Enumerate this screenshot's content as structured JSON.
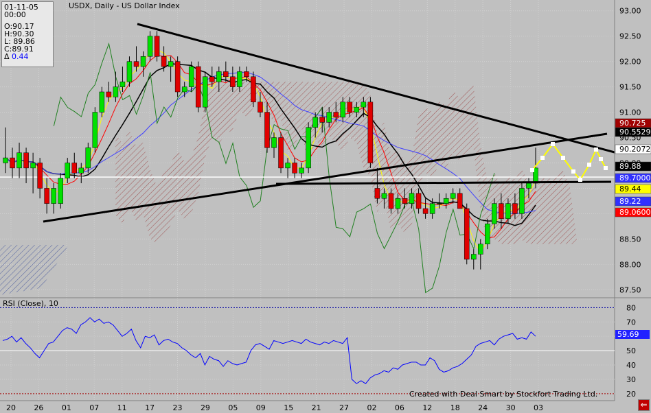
{
  "chart_header": {
    "title": "USDX, Daily - US Dollar Index"
  },
  "info_box": {
    "date": "01-11-05",
    "time": "00:00",
    "open": "O:90.17",
    "high": "H:90.30",
    "low": "L: 89.86",
    "close": "C:89.91",
    "change_symbol": "Δ",
    "change_value": "0.44"
  },
  "rsi_panel": {
    "title": "RSI (Close), 10",
    "current_value": "59.69"
  },
  "credit": "Created with Deal Smart by Stockfort Trading Ltd.",
  "price_labels": [
    {
      "text": "90.725",
      "color": "#a00000",
      "text_color": "#ffffff"
    },
    {
      "text": "90.5529",
      "color": "#000000",
      "text_color": "#ffffff"
    },
    {
      "text": "90.2072",
      "color": "#ffffff",
      "text_color": "#000000"
    },
    {
      "text": "89.88",
      "color": "#000000",
      "text_color": "#ffffff"
    },
    {
      "text": "89.7000",
      "color": "#3030ff",
      "text_color": "#ffffff"
    },
    {
      "text": "89.44",
      "color": "#ffff00",
      "text_color": "#000000"
    },
    {
      "text": "89.22",
      "color": "#3030ff",
      "text_color": "#ffffff"
    },
    {
      "text": "89.0600",
      "color": "#ff0000",
      "text_color": "#ffffff"
    }
  ],
  "colors": {
    "background": "#c0c0c0",
    "grid": "#d8d8d8",
    "up_candle": "#00e000",
    "down_candle": "#e00000",
    "rsi_line": "#0000ff",
    "cloud_hatch": "#a06060",
    "yellow_line": "#ffff00",
    "blue_line": "#4040ff",
    "green_line": "#208020"
  },
  "exit_button": {
    "label": "⇐"
  },
  "chart_data": {
    "type": "candlestick",
    "title": "USDX, Daily - US Dollar Index",
    "y_axis_ticks": [
      "93.00",
      "92.50",
      "92.00",
      "91.50",
      "91.00",
      "90.50",
      "90.00",
      "89.50",
      "89.00",
      "88.50",
      "88.00",
      "87.50"
    ],
    "ylim": [
      87.45,
      93.05
    ],
    "x_axis_ticks": [
      "20",
      "26",
      "01",
      "07",
      "11",
      "17",
      "23",
      "29",
      "05",
      "09",
      "15",
      "21",
      "27",
      "02",
      "06",
      "12",
      "18",
      "24",
      "30",
      "03"
    ],
    "candles": [
      {
        "o": 90.0,
        "h": 90.7,
        "l": 89.8,
        "c": 90.1
      },
      {
        "o": 90.1,
        "h": 90.3,
        "l": 89.7,
        "c": 89.9
      },
      {
        "o": 89.9,
        "h": 90.4,
        "l": 89.7,
        "c": 90.2
      },
      {
        "o": 90.2,
        "h": 90.3,
        "l": 89.6,
        "c": 89.9
      },
      {
        "o": 89.9,
        "h": 90.2,
        "l": 89.4,
        "c": 90.0
      },
      {
        "o": 90.0,
        "h": 90.1,
        "l": 89.3,
        "c": 89.5
      },
      {
        "o": 89.5,
        "h": 89.7,
        "l": 89.0,
        "c": 89.2
      },
      {
        "o": 89.2,
        "h": 89.6,
        "l": 89.0,
        "c": 89.5
      },
      {
        "o": 89.2,
        "h": 89.8,
        "l": 89.1,
        "c": 89.7
      },
      {
        "o": 89.7,
        "h": 90.1,
        "l": 89.6,
        "c": 90.0
      },
      {
        "o": 90.0,
        "h": 90.2,
        "l": 89.7,
        "c": 89.8
      },
      {
        "o": 89.8,
        "h": 90.0,
        "l": 89.6,
        "c": 89.9
      },
      {
        "o": 89.9,
        "h": 90.4,
        "l": 89.8,
        "c": 90.3
      },
      {
        "o": 90.3,
        "h": 91.1,
        "l": 90.2,
        "c": 91.0
      },
      {
        "o": 91.0,
        "h": 91.5,
        "l": 90.9,
        "c": 91.4
      },
      {
        "o": 91.4,
        "h": 91.6,
        "l": 91.2,
        "c": 91.3
      },
      {
        "o": 91.3,
        "h": 91.8,
        "l": 91.2,
        "c": 91.5
      },
      {
        "o": 91.5,
        "h": 91.9,
        "l": 91.4,
        "c": 91.6
      },
      {
        "o": 91.6,
        "h": 92.1,
        "l": 91.5,
        "c": 92.0
      },
      {
        "o": 92.0,
        "h": 92.3,
        "l": 91.8,
        "c": 91.9
      },
      {
        "o": 91.9,
        "h": 92.2,
        "l": 91.7,
        "c": 92.1
      },
      {
        "o": 92.1,
        "h": 92.6,
        "l": 92.0,
        "c": 92.5
      },
      {
        "o": 92.5,
        "h": 92.6,
        "l": 92.0,
        "c": 92.1
      },
      {
        "o": 92.1,
        "h": 92.3,
        "l": 91.8,
        "c": 91.9
      },
      {
        "o": 91.9,
        "h": 92.1,
        "l": 91.6,
        "c": 92.0
      },
      {
        "o": 92.0,
        "h": 92.1,
        "l": 91.3,
        "c": 91.4
      },
      {
        "o": 91.4,
        "h": 91.6,
        "l": 91.3,
        "c": 91.5
      },
      {
        "o": 91.5,
        "h": 92.0,
        "l": 91.4,
        "c": 91.9
      },
      {
        "o": 91.9,
        "h": 92.0,
        "l": 91.0,
        "c": 91.1
      },
      {
        "o": 91.1,
        "h": 91.8,
        "l": 91.0,
        "c": 91.7
      },
      {
        "o": 91.7,
        "h": 91.9,
        "l": 91.5,
        "c": 91.6
      },
      {
        "o": 91.6,
        "h": 91.9,
        "l": 91.4,
        "c": 91.8
      },
      {
        "o": 91.8,
        "h": 92.0,
        "l": 91.6,
        "c": 91.7
      },
      {
        "o": 91.7,
        "h": 91.9,
        "l": 91.4,
        "c": 91.5
      },
      {
        "o": 91.5,
        "h": 91.9,
        "l": 91.4,
        "c": 91.8
      },
      {
        "o": 91.8,
        "h": 91.9,
        "l": 91.6,
        "c": 91.7
      },
      {
        "o": 91.7,
        "h": 91.8,
        "l": 91.1,
        "c": 91.2
      },
      {
        "o": 91.2,
        "h": 91.4,
        "l": 90.9,
        "c": 91.0
      },
      {
        "o": 91.0,
        "h": 91.2,
        "l": 90.2,
        "c": 90.3
      },
      {
        "o": 90.3,
        "h": 90.6,
        "l": 90.1,
        "c": 90.5
      },
      {
        "o": 90.5,
        "h": 90.6,
        "l": 89.8,
        "c": 89.9
      },
      {
        "o": 89.9,
        "h": 90.1,
        "l": 89.7,
        "c": 90.0
      },
      {
        "o": 90.0,
        "h": 90.1,
        "l": 89.7,
        "c": 89.8
      },
      {
        "o": 89.8,
        "h": 90.0,
        "l": 89.7,
        "c": 89.9
      },
      {
        "o": 89.9,
        "h": 90.8,
        "l": 89.8,
        "c": 90.7
      },
      {
        "o": 90.7,
        "h": 91.0,
        "l": 90.5,
        "c": 90.9
      },
      {
        "o": 90.9,
        "h": 91.1,
        "l": 90.6,
        "c": 90.8
      },
      {
        "o": 90.8,
        "h": 91.1,
        "l": 90.7,
        "c": 91.0
      },
      {
        "o": 91.0,
        "h": 91.2,
        "l": 90.8,
        "c": 90.9
      },
      {
        "o": 90.9,
        "h": 91.3,
        "l": 90.8,
        "c": 91.2
      },
      {
        "o": 91.2,
        "h": 91.3,
        "l": 90.9,
        "c": 91.0
      },
      {
        "o": 91.0,
        "h": 91.2,
        "l": 90.9,
        "c": 91.1
      },
      {
        "o": 91.1,
        "h": 91.3,
        "l": 90.9,
        "c": 91.2
      },
      {
        "o": 91.2,
        "h": 91.3,
        "l": 89.9,
        "c": 90.0
      },
      {
        "o": 89.5,
        "h": 89.9,
        "l": 89.2,
        "c": 89.3
      },
      {
        "o": 89.3,
        "h": 89.5,
        "l": 89.1,
        "c": 89.4
      },
      {
        "o": 89.4,
        "h": 89.5,
        "l": 89.0,
        "c": 89.1
      },
      {
        "o": 89.1,
        "h": 89.4,
        "l": 89.0,
        "c": 89.3
      },
      {
        "o": 89.3,
        "h": 89.5,
        "l": 89.1,
        "c": 89.2
      },
      {
        "o": 89.2,
        "h": 89.5,
        "l": 89.1,
        "c": 89.4
      },
      {
        "o": 89.4,
        "h": 89.5,
        "l": 89.0,
        "c": 89.1
      },
      {
        "o": 89.1,
        "h": 89.3,
        "l": 88.9,
        "c": 89.0
      },
      {
        "o": 89.0,
        "h": 89.3,
        "l": 88.9,
        "c": 89.2
      },
      {
        "o": 89.2,
        "h": 89.4,
        "l": 89.1,
        "c": 89.2
      },
      {
        "o": 89.2,
        "h": 89.4,
        "l": 89.1,
        "c": 89.3
      },
      {
        "o": 89.3,
        "h": 89.5,
        "l": 89.2,
        "c": 89.4
      },
      {
        "o": 89.4,
        "h": 89.5,
        "l": 89.1,
        "c": 89.1
      },
      {
        "o": 89.1,
        "h": 89.2,
        "l": 88.0,
        "c": 88.1
      },
      {
        "o": 88.1,
        "h": 88.3,
        "l": 87.9,
        "c": 88.2
      },
      {
        "o": 88.2,
        "h": 88.5,
        "l": 87.9,
        "c": 88.4
      },
      {
        "o": 88.4,
        "h": 88.9,
        "l": 88.3,
        "c": 88.8
      },
      {
        "o": 88.8,
        "h": 89.3,
        "l": 88.7,
        "c": 89.2
      },
      {
        "o": 89.2,
        "h": 89.4,
        "l": 88.7,
        "c": 88.9
      },
      {
        "o": 88.9,
        "h": 89.3,
        "l": 88.8,
        "c": 89.2
      },
      {
        "o": 89.2,
        "h": 89.4,
        "l": 88.9,
        "c": 89.0
      },
      {
        "o": 89.0,
        "h": 89.6,
        "l": 88.9,
        "c": 89.5
      },
      {
        "o": 89.5,
        "h": 89.7,
        "l": 89.3,
        "c": 89.6
      },
      {
        "o": 89.6,
        "h": 90.3,
        "l": 89.5,
        "c": 89.9
      }
    ],
    "rsi": {
      "name": "RSI (Close), 10",
      "y_axis_ticks": [
        "80",
        "70",
        "60",
        "50",
        "40",
        "30",
        "20"
      ],
      "ylim": [
        18,
        84
      ],
      "levels": [
        80,
        50,
        20
      ],
      "values": [
        57,
        58,
        60,
        56,
        59,
        55,
        52,
        48,
        45,
        50,
        55,
        56,
        60,
        64,
        66,
        65,
        62,
        68,
        70,
        73,
        70,
        72,
        69,
        70,
        68,
        64,
        60,
        62,
        65,
        57,
        52,
        60,
        59,
        61,
        54,
        57,
        58,
        56,
        55,
        52,
        50,
        47,
        45,
        48,
        40,
        46,
        44,
        43,
        39,
        43,
        41,
        40,
        41,
        42,
        50,
        54,
        55,
        53,
        51,
        57,
        56,
        55,
        56,
        57,
        56,
        55,
        58,
        56,
        55,
        54,
        56,
        55,
        57,
        56,
        55,
        59,
        30,
        27,
        29,
        27,
        31,
        33,
        34,
        36,
        35,
        38,
        37,
        40,
        41,
        42,
        42,
        40,
        40,
        45,
        43,
        37,
        35,
        36,
        38,
        39,
        41,
        44,
        47,
        53,
        55,
        56,
        57,
        54,
        58,
        60,
        61,
        62,
        58,
        59,
        58,
        63,
        60
      ],
      "current_value": "59.69"
    }
  }
}
